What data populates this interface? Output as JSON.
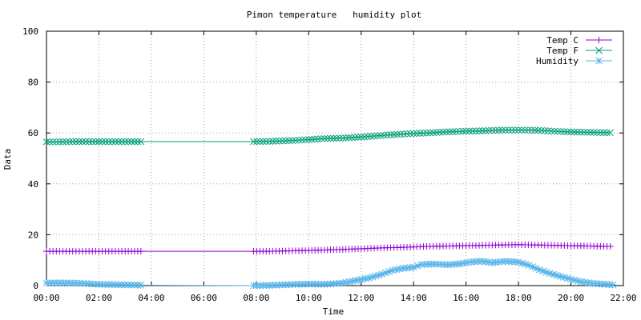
{
  "chart_data": {
    "type": "line",
    "title": "Pimon temperature   humidity plot",
    "xlabel": "Time",
    "ylabel": "Data",
    "x_unit": "hours",
    "xlim": [
      0,
      22
    ],
    "ylim": [
      0,
      100
    ],
    "x_ticks": [
      {
        "v": 0,
        "label": "00:00"
      },
      {
        "v": 2,
        "label": "02:00"
      },
      {
        "v": 4,
        "label": "04:00"
      },
      {
        "v": 6,
        "label": "06:00"
      },
      {
        "v": 8,
        "label": "08:00"
      },
      {
        "v": 10,
        "label": "10:00"
      },
      {
        "v": 12,
        "label": "12:00"
      },
      {
        "v": 14,
        "label": "14:00"
      },
      {
        "v": 16,
        "label": "16:00"
      },
      {
        "v": 18,
        "label": "18:00"
      },
      {
        "v": 20,
        "label": "20:00"
      },
      {
        "v": 22,
        "label": "22:00"
      }
    ],
    "y_ticks": [
      {
        "v": 0,
        "label": "0"
      },
      {
        "v": 20,
        "label": "20"
      },
      {
        "v": 40,
        "label": "40"
      },
      {
        "v": 60,
        "label": "60"
      },
      {
        "v": 80,
        "label": "80"
      },
      {
        "v": 100,
        "label": "100"
      }
    ],
    "grid": true,
    "legend_position": "top-right",
    "series": [
      {
        "name": "Temp C",
        "color": "#9400d3",
        "marker": "plus",
        "points": [
          [
            0,
            13.5
          ],
          [
            0.5,
            13.5
          ],
          [
            1,
            13.5
          ],
          [
            1.5,
            13.5
          ],
          [
            2,
            13.5
          ],
          [
            2.5,
            13.5
          ],
          [
            3,
            13.5
          ],
          [
            3.6,
            13.5
          ],
          [
            7.9,
            13.5
          ],
          [
            8.5,
            13.5
          ],
          [
            9,
            13.6
          ],
          [
            9.5,
            13.7
          ],
          [
            10,
            13.8
          ],
          [
            10.6,
            14.0
          ],
          [
            11.3,
            14.2
          ],
          [
            12,
            14.5
          ],
          [
            12.5,
            14.7
          ],
          [
            13,
            14.9
          ],
          [
            13.5,
            15.0
          ],
          [
            14,
            15.2
          ],
          [
            14.5,
            15.4
          ],
          [
            15,
            15.5
          ],
          [
            15.5,
            15.6
          ],
          [
            16,
            15.7
          ],
          [
            16.5,
            15.8
          ],
          [
            17,
            15.9
          ],
          [
            17.5,
            16.0
          ],
          [
            18,
            16.1
          ],
          [
            18.5,
            16.0
          ],
          [
            19,
            15.9
          ],
          [
            19.5,
            15.8
          ],
          [
            20,
            15.7
          ],
          [
            20.5,
            15.6
          ],
          [
            21,
            15.5
          ],
          [
            21.5,
            15.4
          ]
        ]
      },
      {
        "name": "Temp F",
        "color": "#009e73",
        "marker": "cross",
        "points": [
          [
            0,
            56.5
          ],
          [
            0.5,
            56.5
          ],
          [
            1,
            56.6
          ],
          [
            1.5,
            56.6
          ],
          [
            2,
            56.6
          ],
          [
            2.5,
            56.6
          ],
          [
            3,
            56.6
          ],
          [
            3.6,
            56.6
          ],
          [
            7.9,
            56.6
          ],
          [
            8.5,
            56.7
          ],
          [
            9,
            56.9
          ],
          [
            9.5,
            57.1
          ],
          [
            10,
            57.4
          ],
          [
            10.6,
            57.8
          ],
          [
            11.3,
            58.0
          ],
          [
            12,
            58.4
          ],
          [
            12.5,
            58.8
          ],
          [
            13,
            59.2
          ],
          [
            13.5,
            59.5
          ],
          [
            14,
            59.8
          ],
          [
            14.5,
            60.0
          ],
          [
            15,
            60.3
          ],
          [
            15.5,
            60.5
          ],
          [
            16,
            60.7
          ],
          [
            16.5,
            60.8
          ],
          [
            17,
            61.0
          ],
          [
            17.5,
            61.1
          ],
          [
            18,
            61.1
          ],
          [
            18.5,
            61.1
          ],
          [
            19,
            60.9
          ],
          [
            19.5,
            60.6
          ],
          [
            20,
            60.4
          ],
          [
            20.5,
            60.3
          ],
          [
            21,
            60.2
          ],
          [
            21.5,
            60.1
          ]
        ]
      },
      {
        "name": "Humidity",
        "color": "#56b4e9",
        "marker": "star",
        "points": [
          [
            0,
            1.0
          ],
          [
            0.5,
            1.1
          ],
          [
            1,
            1.0
          ],
          [
            1.5,
            0.8
          ],
          [
            2,
            0.5
          ],
          [
            2.5,
            0.4
          ],
          [
            3,
            0.3
          ],
          [
            3.6,
            0.2
          ],
          [
            7.9,
            0.0
          ],
          [
            8.5,
            0.1
          ],
          [
            9,
            0.3
          ],
          [
            9.5,
            0.5
          ],
          [
            10,
            0.6
          ],
          [
            10.6,
            0.5
          ],
          [
            11.3,
            1.0
          ],
          [
            11.8,
            2.0
          ],
          [
            12.3,
            3.0
          ],
          [
            12.8,
            4.5
          ],
          [
            13.2,
            6.0
          ],
          [
            13.6,
            6.8
          ],
          [
            14,
            7.2
          ],
          [
            14.3,
            8.3
          ],
          [
            14.8,
            8.5
          ],
          [
            15.3,
            8.2
          ],
          [
            15.8,
            8.6
          ],
          [
            16.2,
            9.3
          ],
          [
            16.6,
            9.6
          ],
          [
            17,
            9.0
          ],
          [
            17.5,
            9.6
          ],
          [
            18,
            9.2
          ],
          [
            18.4,
            8.0
          ],
          [
            18.8,
            6.2
          ],
          [
            19.2,
            4.8
          ],
          [
            19.6,
            3.6
          ],
          [
            20,
            2.5
          ],
          [
            20.4,
            1.5
          ],
          [
            20.8,
            0.9
          ],
          [
            21.2,
            0.6
          ],
          [
            21.6,
            0.3
          ]
        ]
      }
    ]
  }
}
